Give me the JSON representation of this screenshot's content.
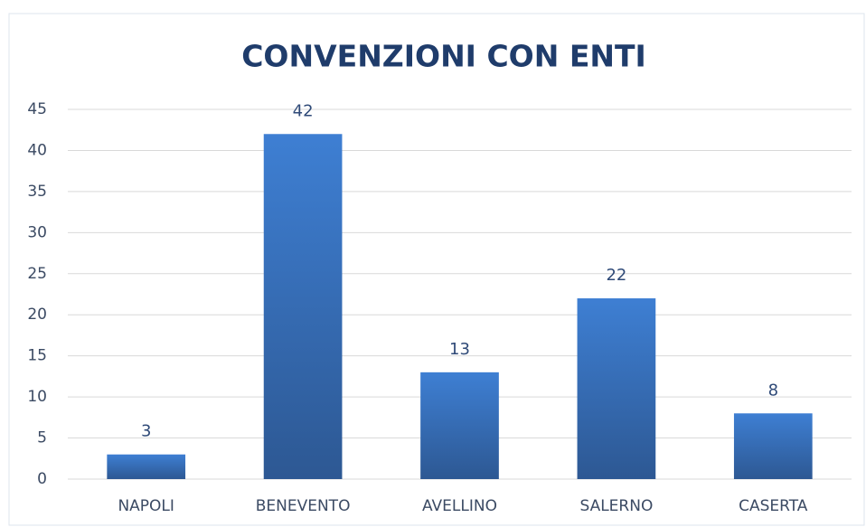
{
  "chart_data": {
    "type": "bar",
    "title": "CONVENZIONI CON ENTI",
    "categories": [
      "NAPOLI",
      "BENEVENTO",
      "AVELLINO",
      "SALERNO",
      "CASERTA"
    ],
    "values": [
      3,
      42,
      13,
      22,
      8
    ],
    "color": "#3a75c4",
    "ylim": [
      0,
      45
    ],
    "yticks": [
      0,
      5,
      10,
      15,
      20,
      25,
      30,
      35,
      40,
      45
    ],
    "grid": true
  }
}
